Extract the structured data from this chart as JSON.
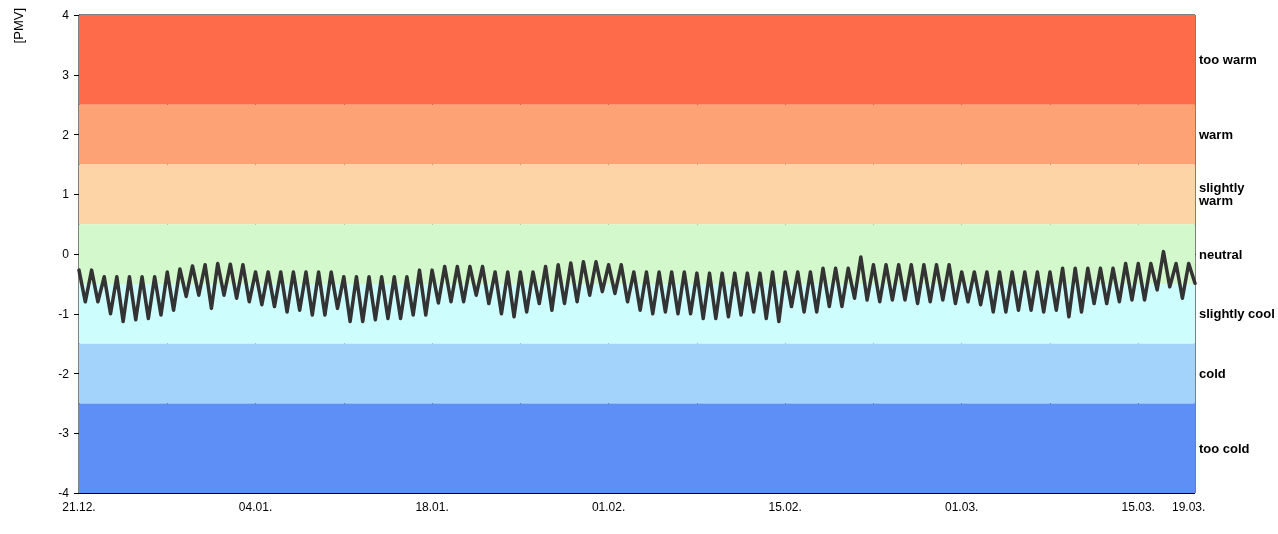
{
  "chart_data": {
    "type": "line",
    "ylabel": "[PMV]",
    "categories": [
      "21.12.",
      null,
      null,
      null,
      null,
      null,
      null,
      null,
      null,
      null,
      null,
      null,
      null,
      null,
      null,
      null,
      null,
      null,
      null,
      null,
      null,
      null,
      null,
      null,
      null,
      null,
      null,
      null,
      "04.01.",
      null,
      null,
      null,
      null,
      null,
      null,
      null,
      null,
      null,
      null,
      null,
      null,
      null,
      null,
      null,
      null,
      null,
      null,
      null,
      null,
      null,
      null,
      null,
      null,
      null,
      null,
      null,
      "18.01.",
      null,
      null,
      null,
      null,
      null,
      null,
      null,
      null,
      null,
      null,
      null,
      null,
      null,
      null,
      null,
      null,
      null,
      null,
      null,
      null,
      null,
      null,
      null,
      null,
      null,
      null,
      null,
      "01.02.",
      null,
      null,
      null,
      null,
      null,
      null,
      null,
      null,
      null,
      null,
      null,
      null,
      null,
      null,
      null,
      null,
      null,
      null,
      null,
      null,
      null,
      null,
      null,
      null,
      null,
      null,
      null,
      "15.02.",
      null,
      null,
      null,
      null,
      null,
      null,
      null,
      null,
      null,
      null,
      null,
      null,
      null,
      null,
      null,
      null,
      null,
      null,
      null,
      null,
      null,
      null,
      null,
      null,
      null,
      null,
      null,
      "01.03.",
      null,
      null,
      null,
      null,
      null,
      null,
      null,
      null,
      null,
      null,
      null,
      null,
      null,
      null,
      null,
      null,
      null,
      null,
      null,
      null,
      null,
      null,
      null,
      null,
      null,
      null,
      null,
      "15.03.",
      null,
      null,
      null,
      null,
      null,
      null,
      null,
      "19.03.",
      null
    ],
    "ylim": [
      -4,
      4
    ],
    "yticks": [
      -4,
      -3,
      -2,
      -1,
      0,
      1,
      2,
      3,
      4
    ],
    "grid": true,
    "marker": "none",
    "line_style": "solid",
    "bands": [
      {
        "axis": "y",
        "from": 2.5,
        "to": 4,
        "label": "too warm",
        "color": "#fe6b4a"
      },
      {
        "axis": "y",
        "from": 1.5,
        "to": 2.5,
        "label": "warm",
        "color": "#fca275"
      },
      {
        "axis": "y",
        "from": 0.5,
        "to": 1.5,
        "label": "slightly warm",
        "color": "#fdd4a5"
      },
      {
        "axis": "y",
        "from": -0.5,
        "to": 0.5,
        "label": "neutral",
        "color": "#d2f8cc"
      },
      {
        "axis": "y",
        "from": -1.5,
        "to": -0.5,
        "label": "slightly cool",
        "color": "#cdfdfd"
      },
      {
        "axis": "y",
        "from": -2.5,
        "to": -1.5,
        "label": "cold",
        "color": "#a3d3fb"
      },
      {
        "axis": "y",
        "from": -4,
        "to": -2.5,
        "label": "too cold",
        "color": "#5d8ff6"
      }
    ],
    "series": [
      {
        "color": "#333333",
        "values": [
          -0.27,
          -0.8,
          -0.27,
          -0.8,
          -0.38,
          -1.0,
          -0.38,
          -1.13,
          -0.38,
          -1.1,
          -0.38,
          -1.08,
          -0.38,
          -1.02,
          -0.3,
          -0.94,
          -0.25,
          -0.71,
          -0.2,
          -0.69,
          -0.18,
          -0.91,
          -0.16,
          -0.69,
          -0.17,
          -0.74,
          -0.18,
          -0.8,
          -0.3,
          -0.85,
          -0.3,
          -0.88,
          -0.3,
          -0.97,
          -0.3,
          -0.94,
          -0.3,
          -1.02,
          -0.3,
          -1.02,
          -0.3,
          -0.91,
          -0.38,
          -1.13,
          -0.38,
          -1.13,
          -0.38,
          -1.1,
          -0.38,
          -1.08,
          -0.38,
          -1.08,
          -0.38,
          -1.02,
          -0.27,
          -1.02,
          -0.27,
          -0.82,
          -0.21,
          -0.8,
          -0.21,
          -0.8,
          -0.21,
          -0.69,
          -0.21,
          -0.83,
          -0.3,
          -1.0,
          -0.3,
          -1.05,
          -0.3,
          -0.97,
          -0.3,
          -0.83,
          -0.21,
          -0.94,
          -0.18,
          -0.83,
          -0.15,
          -0.8,
          -0.13,
          -0.69,
          -0.13,
          -0.63,
          -0.18,
          -0.66,
          -0.18,
          -0.8,
          -0.3,
          -0.94,
          -0.3,
          -1.0,
          -0.3,
          -0.97,
          -0.3,
          -1.0,
          -0.3,
          -1.0,
          -0.32,
          -1.08,
          -0.32,
          -1.08,
          -0.32,
          -1.05,
          -0.32,
          -1.02,
          -0.32,
          -0.97,
          -0.32,
          -1.08,
          -0.3,
          -1.13,
          -0.3,
          -0.88,
          -0.3,
          -0.97,
          -0.3,
          -0.97,
          -0.24,
          -0.88,
          -0.24,
          -0.88,
          -0.24,
          -0.74,
          -0.05,
          -0.77,
          -0.18,
          -0.8,
          -0.18,
          -0.77,
          -0.18,
          -0.77,
          -0.18,
          -0.83,
          -0.18,
          -0.8,
          -0.18,
          -0.77,
          -0.18,
          -0.83,
          -0.3,
          -0.8,
          -0.3,
          -0.85,
          -0.3,
          -0.97,
          -0.3,
          -0.97,
          -0.3,
          -0.94,
          -0.3,
          -0.94,
          -0.3,
          -0.97,
          -0.3,
          -0.94,
          -0.24,
          -1.05,
          -0.24,
          -0.97,
          -0.24,
          -0.83,
          -0.24,
          -0.83,
          -0.24,
          -0.8,
          -0.16,
          -0.77,
          -0.16,
          -0.77,
          -0.16,
          -0.6,
          0.04,
          -0.55,
          -0.16,
          -0.74,
          -0.16,
          -0.49
        ]
      }
    ]
  }
}
